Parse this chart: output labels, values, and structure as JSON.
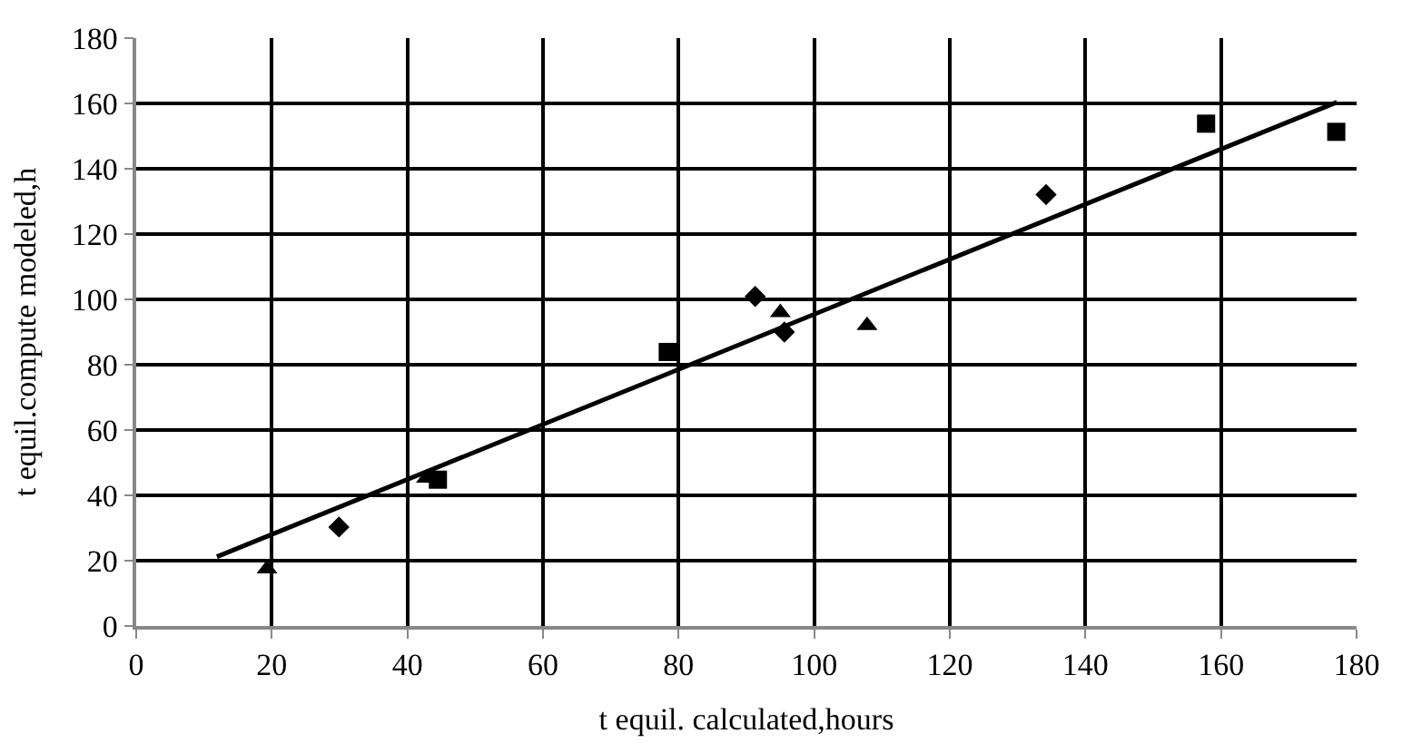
{
  "chart_data": {
    "type": "scatter",
    "xlabel": "t equil. calculated,hours",
    "ylabel": "t equil.compute modeled,h",
    "xlim": [
      0,
      180
    ],
    "xticks": [
      0,
      20,
      40,
      60,
      80,
      100,
      120,
      140,
      160,
      180
    ],
    "ylim": [
      0,
      180
    ],
    "yticks": [
      0,
      20,
      40,
      60,
      80,
      100,
      120,
      140,
      160,
      180
    ],
    "grid": true,
    "series": [
      {
        "marker": "triangle",
        "color": "#000000",
        "x": [
          19.3,
          42.8,
          95.0,
          107.8
        ],
        "values": [
          17.5,
          45.3,
          96,
          92
        ]
      },
      {
        "marker": "diamond",
        "color": "#000000",
        "x": [
          29.9,
          91.3,
          95.6,
          134.2
        ],
        "values": [
          30.3,
          100.9,
          90,
          132.1
        ]
      },
      {
        "marker": "square",
        "color": "#000000",
        "x": [
          44.5,
          78.4,
          157.8,
          177.0
        ],
        "values": [
          44.8,
          83.9,
          153.8,
          151.3
        ]
      },
      {
        "type": "line",
        "marker": "none",
        "color": "#000000",
        "x": [
          11.9,
          177.1
        ],
        "values": [
          21.2,
          160.4
        ]
      }
    ]
  }
}
